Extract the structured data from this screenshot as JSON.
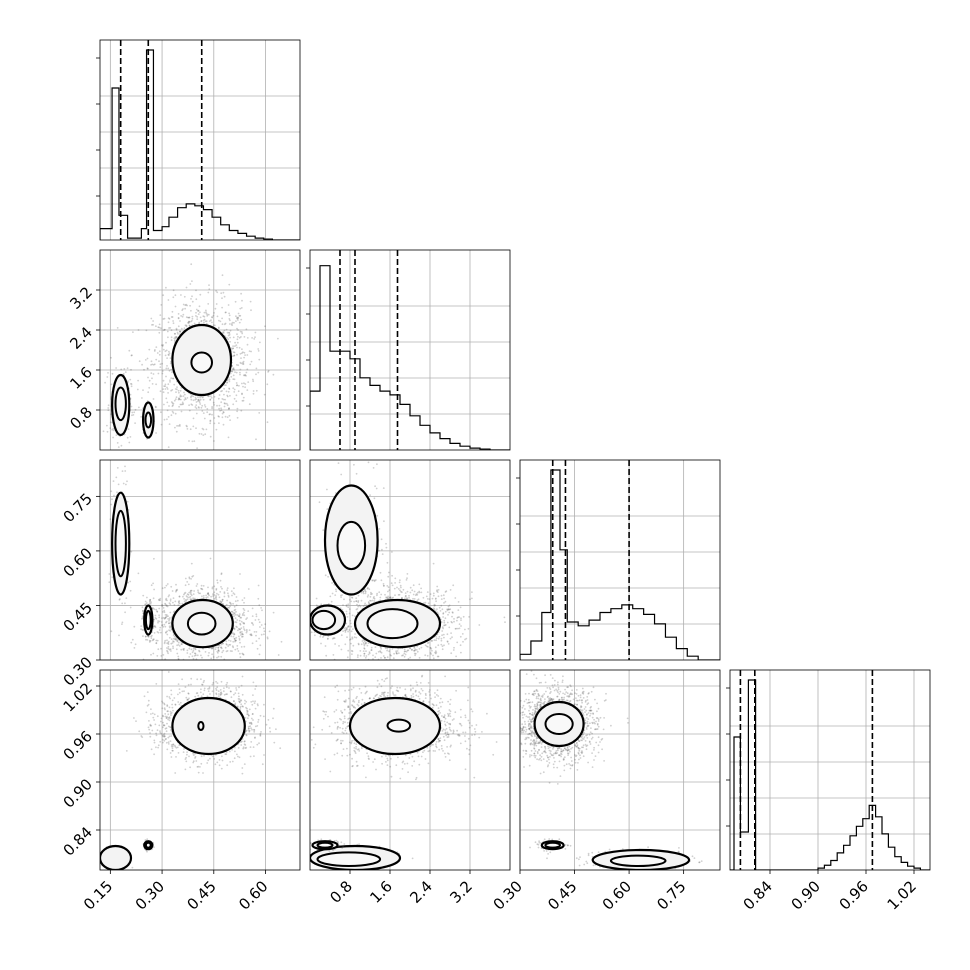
{
  "chart_data": [
    {
      "type": "histogram",
      "panel": "diag-p0",
      "range": [
        0.12,
        0.7
      ],
      "quantiles": [
        0.18,
        0.26,
        0.415
      ],
      "bins": [
        {
          "x0": 0.12,
          "x1": 0.155,
          "h": 0.06
        },
        {
          "x0": 0.155,
          "x1": 0.175,
          "h": 0.8
        },
        {
          "x0": 0.175,
          "x1": 0.2,
          "h": 0.13
        },
        {
          "x0": 0.2,
          "x1": 0.24,
          "h": 0.01
        },
        {
          "x0": 0.24,
          "x1": 0.255,
          "h": 0.06
        },
        {
          "x0": 0.255,
          "x1": 0.275,
          "h": 1.0
        },
        {
          "x0": 0.275,
          "x1": 0.3,
          "h": 0.05
        },
        {
          "x0": 0.3,
          "x1": 0.32,
          "h": 0.07
        },
        {
          "x0": 0.32,
          "x1": 0.345,
          "h": 0.12
        },
        {
          "x0": 0.345,
          "x1": 0.37,
          "h": 0.17
        },
        {
          "x0": 0.37,
          "x1": 0.395,
          "h": 0.19
        },
        {
          "x0": 0.395,
          "x1": 0.42,
          "h": 0.18
        },
        {
          "x0": 0.42,
          "x1": 0.445,
          "h": 0.16
        },
        {
          "x0": 0.445,
          "x1": 0.47,
          "h": 0.12
        },
        {
          "x0": 0.47,
          "x1": 0.495,
          "h": 0.08
        },
        {
          "x0": 0.495,
          "x1": 0.52,
          "h": 0.05
        },
        {
          "x0": 0.52,
          "x1": 0.545,
          "h": 0.035
        },
        {
          "x0": 0.545,
          "x1": 0.57,
          "h": 0.02
        },
        {
          "x0": 0.57,
          "x1": 0.595,
          "h": 0.01
        },
        {
          "x0": 0.595,
          "x1": 0.62,
          "h": 0.005
        },
        {
          "x0": 0.62,
          "x1": 0.7,
          "h": 0.0
        }
      ]
    },
    {
      "type": "histogram",
      "panel": "diag-p1",
      "range": [
        0.0,
        4.0
      ],
      "quantiles": [
        0.6,
        0.9,
        1.75
      ],
      "bins": [
        {
          "x0": 0.0,
          "x1": 0.2,
          "h": 0.31
        },
        {
          "x0": 0.2,
          "x1": 0.4,
          "h": 0.97
        },
        {
          "x0": 0.4,
          "x1": 0.6,
          "h": 0.52
        },
        {
          "x0": 0.6,
          "x1": 0.8,
          "h": 0.52
        },
        {
          "x0": 0.8,
          "x1": 1.0,
          "h": 0.48
        },
        {
          "x0": 1.0,
          "x1": 1.2,
          "h": 0.38
        },
        {
          "x0": 1.2,
          "x1": 1.4,
          "h": 0.34
        },
        {
          "x0": 1.4,
          "x1": 1.6,
          "h": 0.31
        },
        {
          "x0": 1.6,
          "x1": 1.8,
          "h": 0.29
        },
        {
          "x0": 1.8,
          "x1": 2.0,
          "h": 0.24
        },
        {
          "x0": 2.0,
          "x1": 2.2,
          "h": 0.18
        },
        {
          "x0": 2.2,
          "x1": 2.4,
          "h": 0.13
        },
        {
          "x0": 2.4,
          "x1": 2.6,
          "h": 0.09
        },
        {
          "x0": 2.6,
          "x1": 2.8,
          "h": 0.06
        },
        {
          "x0": 2.8,
          "x1": 3.0,
          "h": 0.035
        },
        {
          "x0": 3.0,
          "x1": 3.2,
          "h": 0.02
        },
        {
          "x0": 3.2,
          "x1": 3.4,
          "h": 0.01
        },
        {
          "x0": 3.4,
          "x1": 3.6,
          "h": 0.005
        },
        {
          "x0": 3.6,
          "x1": 4.0,
          "h": 0.0
        }
      ]
    },
    {
      "type": "histogram",
      "panel": "diag-p2",
      "range": [
        0.3,
        0.85
      ],
      "quantiles": [
        0.39,
        0.425,
        0.6
      ],
      "bins": [
        {
          "x0": 0.3,
          "x1": 0.33,
          "h": 0.03
        },
        {
          "x0": 0.33,
          "x1": 0.36,
          "h": 0.1
        },
        {
          "x0": 0.36,
          "x1": 0.385,
          "h": 0.25
        },
        {
          "x0": 0.385,
          "x1": 0.41,
          "h": 1.0
        },
        {
          "x0": 0.41,
          "x1": 0.43,
          "h": 0.58
        },
        {
          "x0": 0.43,
          "x1": 0.46,
          "h": 0.2
        },
        {
          "x0": 0.46,
          "x1": 0.49,
          "h": 0.18
        },
        {
          "x0": 0.49,
          "x1": 0.52,
          "h": 0.21
        },
        {
          "x0": 0.52,
          "x1": 0.55,
          "h": 0.25
        },
        {
          "x0": 0.55,
          "x1": 0.58,
          "h": 0.27
        },
        {
          "x0": 0.58,
          "x1": 0.61,
          "h": 0.29
        },
        {
          "x0": 0.61,
          "x1": 0.64,
          "h": 0.27
        },
        {
          "x0": 0.64,
          "x1": 0.67,
          "h": 0.24
        },
        {
          "x0": 0.67,
          "x1": 0.7,
          "h": 0.19
        },
        {
          "x0": 0.7,
          "x1": 0.73,
          "h": 0.12
        },
        {
          "x0": 0.73,
          "x1": 0.76,
          "h": 0.06
        },
        {
          "x0": 0.76,
          "x1": 0.79,
          "h": 0.02
        },
        {
          "x0": 0.79,
          "x1": 0.85,
          "h": 0.0
        }
      ]
    },
    {
      "type": "histogram",
      "panel": "diag-p3",
      "range": [
        0.79,
        1.04
      ],
      "quantiles": [
        0.803,
        0.821,
        0.968
      ],
      "bins": [
        {
          "x0": 0.79,
          "x1": 0.795,
          "h": 0.0
        },
        {
          "x0": 0.795,
          "x1": 0.803,
          "h": 0.7
        },
        {
          "x0": 0.803,
          "x1": 0.813,
          "h": 0.2
        },
        {
          "x0": 0.813,
          "x1": 0.822,
          "h": 1.0
        },
        {
          "x0": 0.822,
          "x1": 0.9,
          "h": 0.0
        },
        {
          "x0": 0.9,
          "x1": 0.908,
          "h": 0.01
        },
        {
          "x0": 0.908,
          "x1": 0.916,
          "h": 0.025
        },
        {
          "x0": 0.916,
          "x1": 0.924,
          "h": 0.05
        },
        {
          "x0": 0.924,
          "x1": 0.932,
          "h": 0.09
        },
        {
          "x0": 0.932,
          "x1": 0.94,
          "h": 0.13
        },
        {
          "x0": 0.94,
          "x1": 0.948,
          "h": 0.18
        },
        {
          "x0": 0.948,
          "x1": 0.956,
          "h": 0.23
        },
        {
          "x0": 0.956,
          "x1": 0.964,
          "h": 0.27
        },
        {
          "x0": 0.964,
          "x1": 0.972,
          "h": 0.34
        },
        {
          "x0": 0.972,
          "x1": 0.98,
          "h": 0.28
        },
        {
          "x0": 0.98,
          "x1": 0.988,
          "h": 0.19
        },
        {
          "x0": 0.988,
          "x1": 0.996,
          "h": 0.12
        },
        {
          "x0": 0.996,
          "x1": 1.004,
          "h": 0.07
        },
        {
          "x0": 1.004,
          "x1": 1.012,
          "h": 0.04
        },
        {
          "x0": 1.012,
          "x1": 1.02,
          "h": 0.02
        },
        {
          "x0": 1.02,
          "x1": 1.028,
          "h": 0.01
        },
        {
          "x0": 1.028,
          "x1": 1.04,
          "h": 0.0
        }
      ]
    },
    {
      "type": "scatter-contour",
      "panel": "pair-p0-p1",
      "xlim": [
        0.12,
        0.7
      ],
      "ylim": [
        0.0,
        4.0
      ],
      "clusters": [
        {
          "cx": 0.415,
          "cy": 1.75,
          "sx": 0.07,
          "sy": 0.6,
          "n": 1400,
          "contours": [
            [
              0.33,
              1.1,
              0.5,
              2.5
            ],
            [
              0.385,
              1.55,
              0.445,
              1.95
            ]
          ]
        },
        {
          "cx": 0.18,
          "cy": 0.9,
          "sx": 0.015,
          "sy": 0.35,
          "n": 260,
          "contours": [
            [
              0.155,
              0.3,
              0.205,
              1.5
            ],
            [
              0.165,
              0.6,
              0.195,
              1.25
            ]
          ]
        },
        {
          "cx": 0.26,
          "cy": 0.6,
          "sx": 0.008,
          "sy": 0.12,
          "n": 180,
          "contours": [
            [
              0.245,
              0.25,
              0.275,
              0.95
            ],
            [
              0.252,
              0.45,
              0.268,
              0.75
            ]
          ]
        }
      ]
    },
    {
      "type": "scatter-contour",
      "panel": "pair-p0-p2",
      "xlim": [
        0.12,
        0.7
      ],
      "ylim": [
        0.3,
        0.85
      ],
      "clusters": [
        {
          "cx": 0.415,
          "cy": 0.4,
          "sx": 0.07,
          "sy": 0.05,
          "n": 1400,
          "contours": [
            [
              0.33,
              0.335,
              0.505,
              0.465
            ],
            [
              0.375,
              0.37,
              0.455,
              0.43
            ]
          ]
        },
        {
          "cx": 0.18,
          "cy": 0.62,
          "sx": 0.012,
          "sy": 0.09,
          "n": 260,
          "contours": [
            [
              0.155,
              0.48,
              0.205,
              0.76
            ],
            [
              0.165,
              0.53,
              0.195,
              0.71
            ]
          ]
        },
        {
          "cx": 0.26,
          "cy": 0.41,
          "sx": 0.008,
          "sy": 0.025,
          "n": 180,
          "contours": [
            [
              0.248,
              0.37,
              0.272,
              0.45
            ],
            [
              0.253,
              0.385,
              0.267,
              0.435
            ]
          ]
        }
      ]
    },
    {
      "type": "scatter-contour",
      "panel": "pair-p1-p2",
      "xlim": [
        0.0,
        4.0
      ],
      "ylim": [
        0.3,
        0.85
      ],
      "clusters": [
        {
          "cx": 1.75,
          "cy": 0.4,
          "sx": 0.6,
          "sy": 0.05,
          "n": 1400,
          "contours": [
            [
              0.9,
              0.335,
              2.6,
              0.465
            ],
            [
              1.15,
              0.36,
              2.15,
              0.44
            ]
          ]
        },
        {
          "cx": 0.9,
          "cy": 0.62,
          "sx": 0.3,
          "sy": 0.09,
          "n": 260,
          "contours": [
            [
              0.3,
              0.48,
              1.35,
              0.78
            ],
            [
              0.55,
              0.55,
              1.1,
              0.68
            ]
          ]
        },
        {
          "cx": 0.3,
          "cy": 0.41,
          "sx": 0.15,
          "sy": 0.025,
          "n": 180,
          "contours": [
            [
              0.0,
              0.37,
              0.7,
              0.45
            ],
            [
              0.05,
              0.385,
              0.5,
              0.435
            ]
          ]
        }
      ]
    },
    {
      "type": "scatter-contour",
      "panel": "pair-p0-p3",
      "xlim": [
        0.12,
        0.7
      ],
      "ylim": [
        0.79,
        1.04
      ],
      "clusters": [
        {
          "cx": 0.43,
          "cy": 0.972,
          "sx": 0.07,
          "sy": 0.022,
          "n": 1400,
          "contours": [
            [
              0.33,
              0.935,
              0.54,
              1.005
            ],
            [
              0.405,
              0.965,
              0.42,
              0.975
            ]
          ]
        },
        {
          "cx": 0.18,
          "cy": 0.806,
          "sx": 0.012,
          "sy": 0.006,
          "n": 120,
          "contours": [
            [
              0.12,
              0.79,
              0.21,
              0.82
            ]
          ]
        },
        {
          "cx": 0.26,
          "cy": 0.821,
          "sx": 0.006,
          "sy": 0.003,
          "n": 120,
          "contours": [
            [
              0.248,
              0.816,
              0.272,
              0.826
            ],
            [
              0.253,
              0.818,
              0.267,
              0.824
            ]
          ]
        }
      ]
    },
    {
      "type": "scatter-contour",
      "panel": "pair-p1-p3",
      "xlim": [
        0.0,
        4.0
      ],
      "ylim": [
        0.79,
        1.04
      ],
      "clusters": [
        {
          "cx": 1.75,
          "cy": 0.972,
          "sx": 0.6,
          "sy": 0.022,
          "n": 1400,
          "contours": [
            [
              0.8,
              0.935,
              2.6,
              1.005
            ],
            [
              1.55,
              0.963,
              2.0,
              0.978
            ]
          ]
        },
        {
          "cx": 0.9,
          "cy": 0.806,
          "sx": 0.45,
          "sy": 0.006,
          "n": 140,
          "contours": [
            [
              0.0,
              0.79,
              1.8,
              0.82
            ],
            [
              0.15,
              0.795,
              1.4,
              0.812
            ]
          ]
        },
        {
          "cx": 0.3,
          "cy": 0.821,
          "sx": 0.15,
          "sy": 0.003,
          "n": 120,
          "contours": [
            [
              0.05,
              0.816,
              0.55,
              0.826
            ],
            [
              0.15,
              0.818,
              0.45,
              0.824
            ]
          ]
        }
      ]
    },
    {
      "type": "scatter-contour",
      "panel": "pair-p2-p3",
      "xlim": [
        0.3,
        0.85
      ],
      "ylim": [
        0.79,
        1.04
      ],
      "clusters": [
        {
          "cx": 0.4,
          "cy": 0.972,
          "sx": 0.055,
          "sy": 0.022,
          "n": 1400,
          "contours": [
            [
              0.34,
              0.945,
              0.475,
              1.0
            ],
            [
              0.37,
              0.96,
              0.445,
              0.985
            ]
          ]
        },
        {
          "cx": 0.62,
          "cy": 0.803,
          "sx": 0.08,
          "sy": 0.006,
          "n": 180,
          "contours": [
            [
              0.5,
              0.79,
              0.765,
              0.815
            ],
            [
              0.55,
              0.795,
              0.7,
              0.808
            ]
          ]
        },
        {
          "cx": 0.39,
          "cy": 0.821,
          "sx": 0.02,
          "sy": 0.003,
          "n": 140,
          "contours": [
            [
              0.36,
              0.816,
              0.42,
              0.826
            ],
            [
              0.37,
              0.818,
              0.41,
              0.824
            ]
          ]
        }
      ]
    }
  ],
  "axes": {
    "p0": {
      "ticks": [
        0.15,
        0.3,
        0.45,
        0.6
      ],
      "labels": [
        "0.15",
        "0.30",
        "0.45",
        "0.60"
      ]
    },
    "p1": {
      "ticks": [
        0.8,
        1.6,
        2.4,
        3.2
      ],
      "labels": [
        "0.8",
        "1.6",
        "2.4",
        "3.2"
      ]
    },
    "p2": {
      "ticks": [
        0.3,
        0.45,
        0.6,
        0.75
      ],
      "labels": [
        "0.30",
        "0.45",
        "0.60",
        "0.75"
      ]
    },
    "p3": {
      "ticks": [
        0.84,
        0.9,
        0.96,
        1.02
      ],
      "labels": [
        "0.84",
        "0.90",
        "0.96",
        "1.02"
      ]
    }
  },
  "colors": {
    "ink": "#000000",
    "grid": "#b0b0b0",
    "points": "#555555"
  }
}
